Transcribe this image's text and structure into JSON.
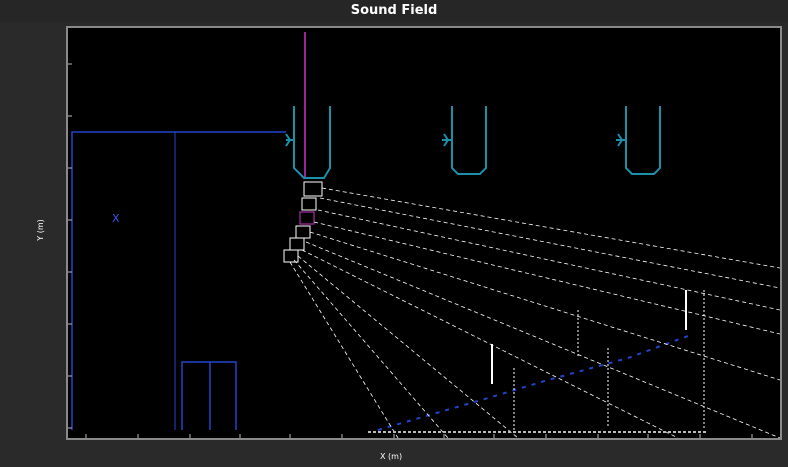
{
  "window": {
    "title": "Sound Field"
  },
  "axes": {
    "xlabel": "X (m)",
    "ylabel": "Y (m)"
  },
  "colors": {
    "background": "#000000",
    "frame": "#8a8a8a",
    "venue": "#2244cc",
    "speaker": "#1e8fa8",
    "rays": "#ffffff",
    "array_highlight": "#cc33cc"
  },
  "markers": {
    "source_label": "X"
  }
}
